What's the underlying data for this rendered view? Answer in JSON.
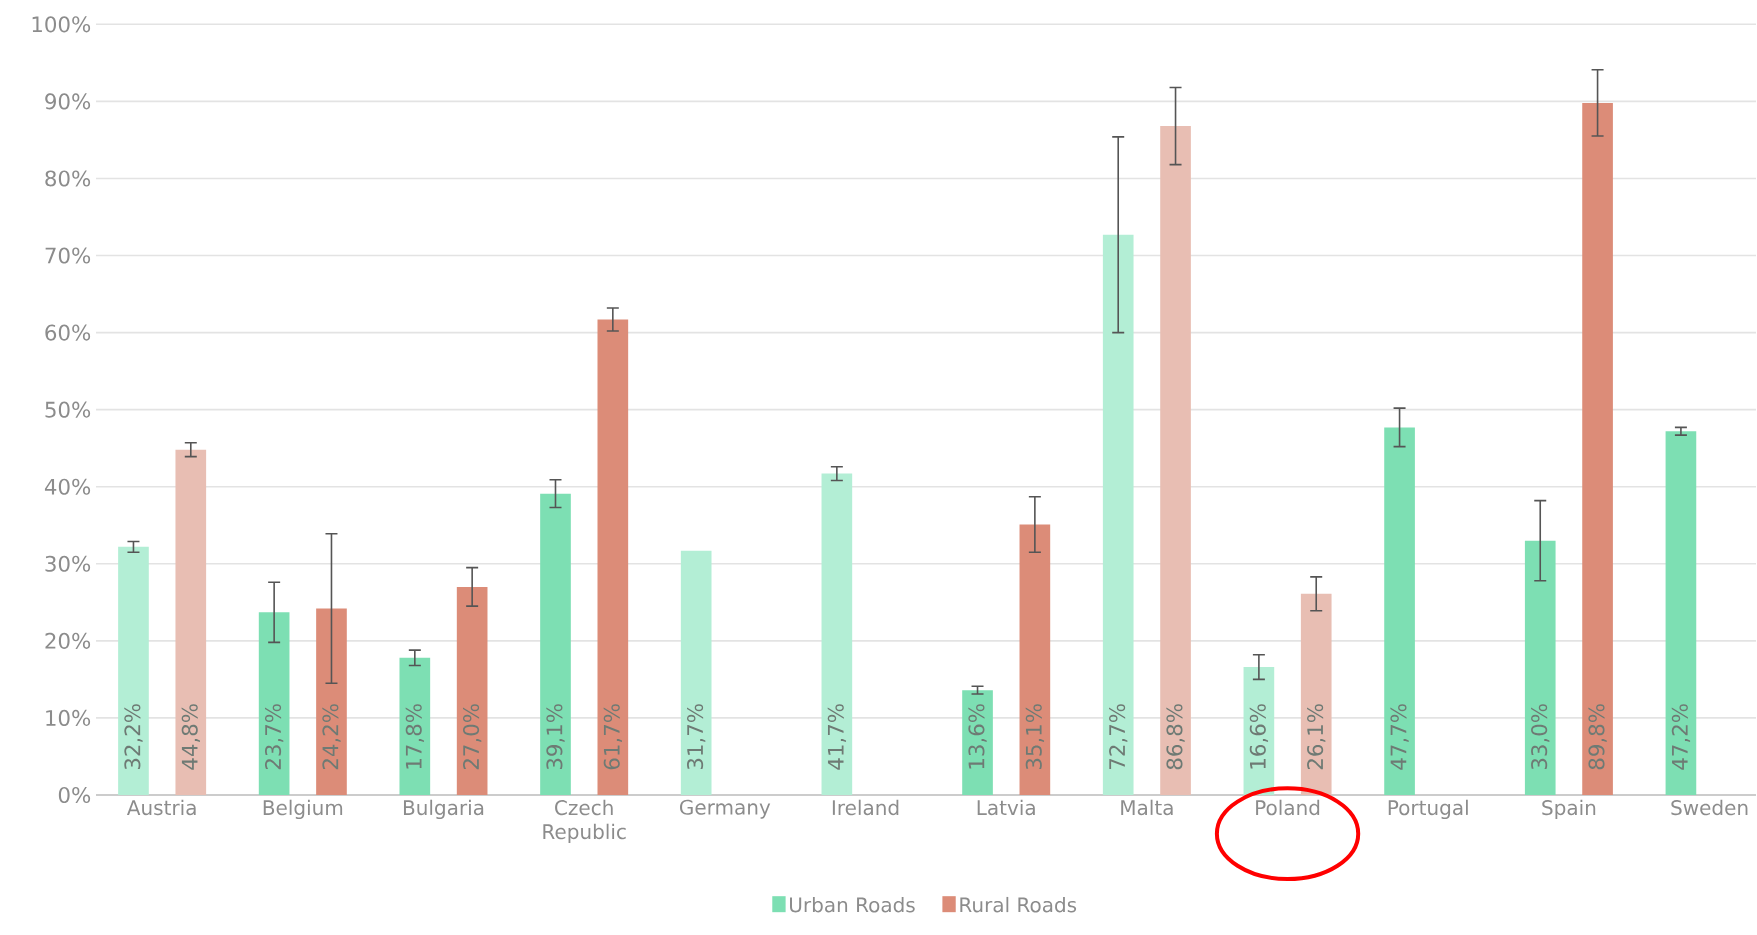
{
  "chart_data": {
    "type": "bar",
    "categories": [
      "Austria",
      "Belgium",
      "Bulgaria",
      "Czech Republic",
      "Germany",
      "Ireland",
      "Latvia",
      "Malta",
      "Poland",
      "Portugal",
      "Spain",
      "Sweden"
    ],
    "series": [
      {
        "name": "Urban Roads",
        "color": "#7ddfb3",
        "colors": [
          "#b3eed5",
          "#7ddfb3",
          "#7ddfb3",
          "#7ddfb3",
          "#b3eed5",
          "#b3eed5",
          "#7ddfb3",
          "#b3eed5",
          "#b3eed5",
          "#7ddfb3",
          "#7ddfb3",
          "#7ddfb3"
        ],
        "values": [
          32.2,
          23.7,
          17.8,
          39.1,
          31.7,
          41.7,
          13.6,
          72.7,
          16.6,
          47.7,
          33.0,
          47.2
        ],
        "errors": [
          0.7,
          3.9,
          1.0,
          1.8,
          null,
          0.9,
          0.5,
          12.7,
          1.6,
          2.5,
          5.2,
          0.5
        ],
        "value_labels": [
          "32,2%",
          "23,7%",
          "17,8%",
          "39,1%",
          "31,7%",
          "41,7%",
          "13,6%",
          "72,7%",
          "16,6%",
          "47,7%",
          "33,0%",
          "47,2%"
        ]
      },
      {
        "name": "Rural Roads",
        "color": "#dc8c78",
        "colors": [
          "#e8beb3",
          "#dc8c78",
          "#dc8c78",
          "#dc8c78",
          null,
          null,
          "#dc8c78",
          "#e8beb3",
          "#e8beb3",
          null,
          "#dc8c78",
          null
        ],
        "values": [
          44.8,
          24.2,
          27.0,
          61.7,
          null,
          null,
          35.1,
          86.8,
          26.1,
          null,
          89.8,
          null
        ],
        "errors": [
          0.9,
          9.7,
          2.5,
          1.5,
          null,
          null,
          3.6,
          5.0,
          2.2,
          null,
          4.3,
          null
        ],
        "value_labels": [
          "44,8%",
          "24,2%",
          "27,0%",
          "61,7%",
          null,
          null,
          "35,1%",
          "86,8%",
          "26,1%",
          null,
          "89,8%",
          null
        ]
      }
    ],
    "ylim": [
      0,
      100
    ],
    "yticks": [
      {
        "value": 0,
        "label": "0%"
      },
      {
        "value": 10,
        "label": "10%"
      },
      {
        "value": 20,
        "label": "20%"
      },
      {
        "value": 30,
        "label": "30%"
      },
      {
        "value": 40,
        "label": "40%"
      },
      {
        "value": 50,
        "label": "50%"
      },
      {
        "value": 60,
        "label": "60%"
      },
      {
        "value": 70,
        "label": "70%"
      },
      {
        "value": 80,
        "label": "80%"
      },
      {
        "value": 90,
        "label": "90%"
      },
      {
        "value": 100,
        "label": "100%"
      }
    ],
    "grid": "y",
    "legend": "bottom"
  }
}
